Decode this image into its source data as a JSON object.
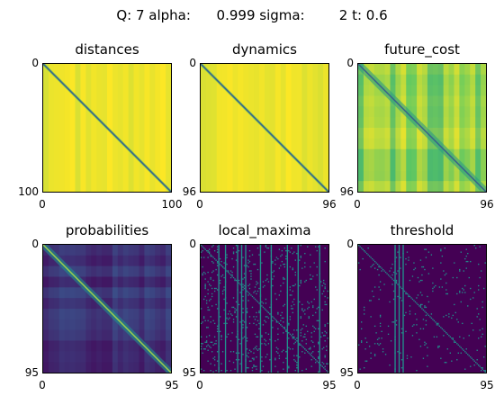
{
  "suptitle": "Q: 7 alpha:      0.999 sigma:        2 t: 0.6",
  "colors": {
    "viridis_dark": "#440154",
    "viridis_blue": "#3b528b",
    "viridis_teal": "#21918c",
    "viridis_green": "#5ec962",
    "viridis_yellow": "#fde725"
  },
  "chart_data": [
    {
      "type": "heatmap",
      "name": "distances",
      "title": "distances",
      "colormap": "viridis",
      "xlim": [
        0,
        100
      ],
      "ylim": [
        0,
        100
      ],
      "xtick_labels": [
        "0",
        "100"
      ],
      "ytick_labels": [
        "0",
        "100"
      ],
      "background_value": 0.97,
      "diagonal_value": 0.3
    },
    {
      "type": "heatmap",
      "name": "dynamics",
      "title": "dynamics",
      "colormap": "viridis",
      "xlim": [
        0,
        96
      ],
      "ylim": [
        0,
        96
      ],
      "xtick_labels": [
        "0",
        "96"
      ],
      "ytick_labels": [
        "0",
        "96"
      ],
      "background_value": 0.97,
      "diagonal_value": 0.3
    },
    {
      "type": "heatmap",
      "name": "future_cost",
      "title": "future_cost",
      "colormap": "viridis",
      "xlim": [
        0,
        96
      ],
      "ylim": [
        0,
        96
      ],
      "xtick_labels": [
        "0",
        "96"
      ],
      "ytick_labels": [
        "0",
        "96"
      ],
      "background_value": 0.8,
      "diagonal_value": 0.3
    },
    {
      "type": "heatmap",
      "name": "probabilities",
      "title": "probabilities",
      "colormap": "viridis",
      "xlim": [
        0,
        95
      ],
      "ylim": [
        0,
        95
      ],
      "xtick_labels": [
        "0",
        "95"
      ],
      "ytick_labels": [
        "0",
        "95"
      ],
      "background_value": 0.15,
      "diagonal_value": 0.85
    },
    {
      "type": "heatmap",
      "name": "local_maxima",
      "title": "local_maxima",
      "colormap": "viridis",
      "xlim": [
        0,
        95
      ],
      "ylim": [
        0,
        95
      ],
      "xtick_labels": [
        "0",
        "95"
      ],
      "ytick_labels": [
        "0",
        "95"
      ],
      "binary": true,
      "background_value": 0.0,
      "foreground_value": 0.5,
      "vertical_line_columns": [
        13,
        18,
        27,
        30,
        33,
        44,
        52,
        64,
        72,
        88
      ]
    },
    {
      "type": "heatmap",
      "name": "threshold",
      "title": "threshold",
      "colormap": "viridis",
      "xlim": [
        0,
        95
      ],
      "ylim": [
        0,
        95
      ],
      "xtick_labels": [
        "0",
        "95"
      ],
      "ytick_labels": [
        "0",
        "95"
      ],
      "binary": true,
      "background_value": 0.0,
      "foreground_value": 0.5,
      "vertical_line_columns": [
        27,
        30,
        33
      ]
    }
  ]
}
